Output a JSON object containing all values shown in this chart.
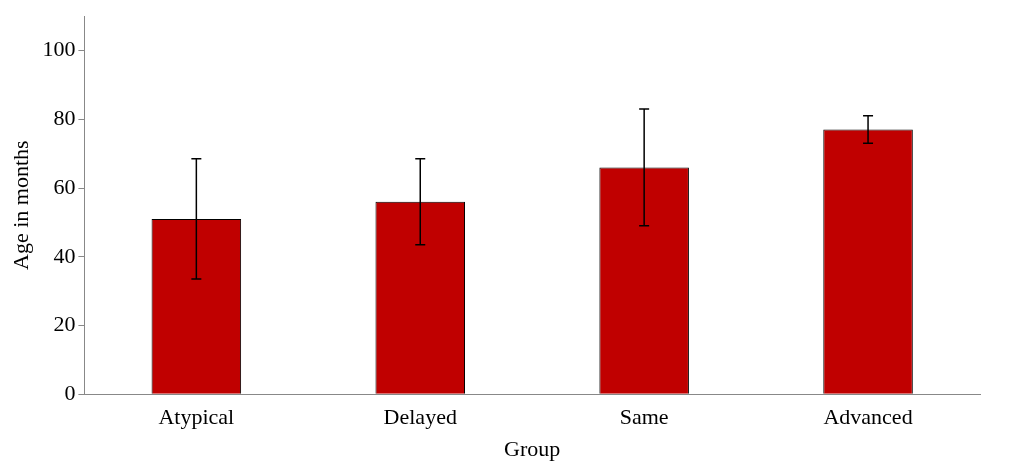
{
  "chart_data": {
    "type": "bar",
    "xlabel": "Group",
    "ylabel": "Age in months",
    "categories": [
      "Atypical",
      "Delayed",
      "Same",
      "Advanced"
    ],
    "values": [
      51,
      56,
      66,
      77
    ],
    "errors": [
      17.5,
      12.5,
      17,
      4
    ],
    "color": "#c00000",
    "ylim": [
      0,
      110
    ],
    "yticks": [
      0,
      20,
      40,
      60,
      80,
      100
    ],
    "grid": false,
    "legend": false
  }
}
